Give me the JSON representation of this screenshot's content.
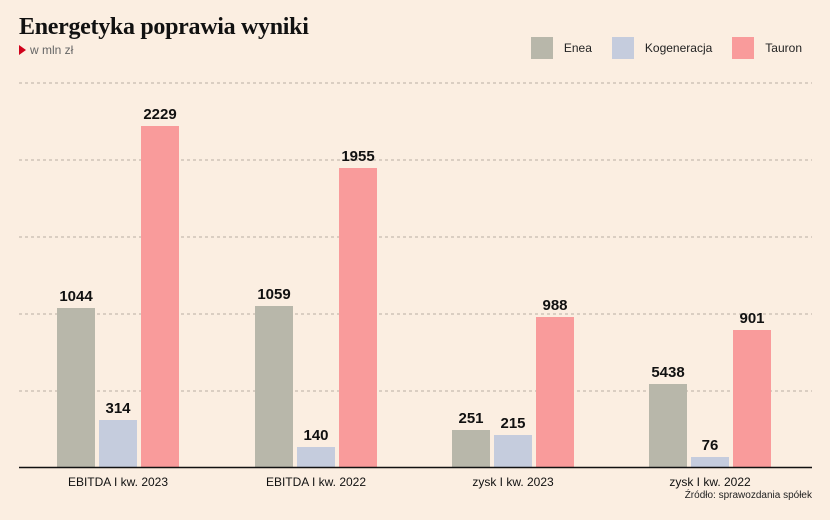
{
  "header": {
    "title": "Energetyka poprawia wyniki",
    "subtitle": "w mln zł"
  },
  "footer": {
    "source": "Źródło: sprawozdania spółek"
  },
  "colors": {
    "Enea": "#b8b7aa",
    "Kogeneracja": "#c5ccdd",
    "Tauron": "#f99b9b"
  },
  "chart_data": {
    "type": "bar",
    "title": "Energetyka poprawia wyniki",
    "subtitle": "w mln zł",
    "categories": [
      "EBITDA I kw. 2023",
      "EBITDA I kw. 2022",
      "zysk I kw. 2023",
      "zysk I kw. 2022"
    ],
    "series": [
      {
        "name": "Enea",
        "values": [
          1044,
          1059,
          251,
          5438
        ]
      },
      {
        "name": "Kogeneracja",
        "values": [
          314,
          140,
          215,
          76
        ]
      },
      {
        "name": "Tauron",
        "values": [
          2229,
          1955,
          988,
          901
        ]
      }
    ],
    "legend": "top-right",
    "grid": true
  }
}
